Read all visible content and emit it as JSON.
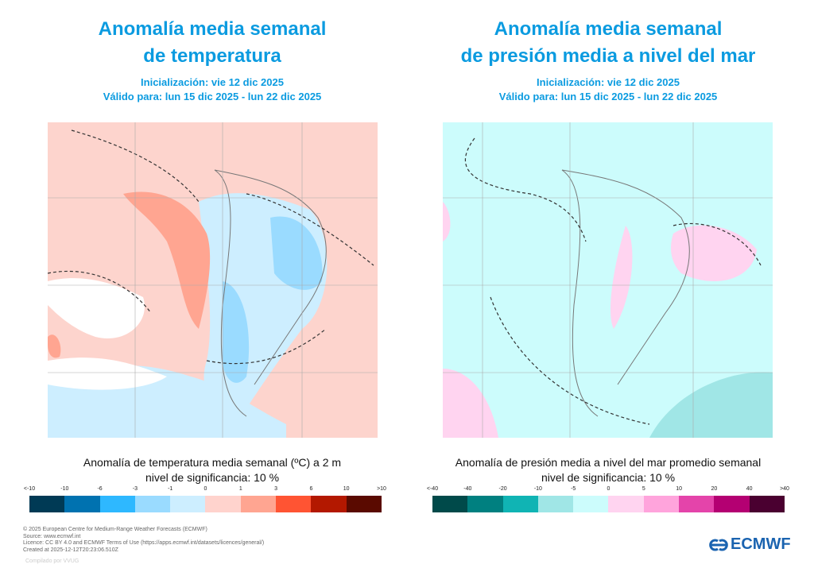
{
  "chart_data": [
    {
      "type": "heatmap",
      "title": "Anomalía media semanal de temperatura",
      "title_lines": [
        "Anomalía media semanal",
        "de temperatura"
      ],
      "init": "Inicialización: vie 12 dic 2025",
      "valid": "Válido para: lun 15 dic 2025 - lun 22 dic 2025",
      "colorbar_label": "Anomalía de temperatura media semanal (ºC) a 2 m",
      "significance": "nivel de significancia: 10 %",
      "tick_labels": [
        "<-10",
        "-10",
        "-6",
        "-3",
        "-1",
        "0",
        "1",
        "3",
        "6",
        "10",
        ">10"
      ],
      "colors": [
        "#003a55",
        "#0072b0",
        "#2eb8ff",
        "#9adbff",
        "#cdeeff",
        "#ffd3cd",
        "#ffa591",
        "#ff5433",
        "#b31800",
        "#5a0a00"
      ]
    },
    {
      "type": "heatmap",
      "title": "Anomalía media semanal de presión media a nivel del mar",
      "title_lines": [
        "Anomalía media semanal",
        "de presión media a nivel del mar"
      ],
      "init": "Inicialización: vie 12 dic 2025",
      "valid": "Válido para: lun 15 dic 2025 - lun 22 dic 2025",
      "colorbar_label": "Anomalía de presión media a nivel del mar promedio semanal",
      "significance": "nivel de significancia: 10 %",
      "tick_labels": [
        "<-40",
        "-40",
        "-20",
        "-10",
        "-5",
        "0",
        "5",
        "10",
        "20",
        "40",
        ">40"
      ],
      "colors": [
        "#004a4a",
        "#008080",
        "#10b4b4",
        "#a0e6e6",
        "#ccfcfc",
        "#ffd4f0",
        "#ffa4dc",
        "#e444aa",
        "#b40072",
        "#4a0030"
      ]
    }
  ],
  "footer": {
    "lines": [
      "© 2025 European Centre for Medium-Range Weather Forecasts (ECMWF)",
      "Source: www.ecmwf.int",
      "Licence: CC BY 4.0 and ECMWF Terms of Use (https://apps.ecmwf.int/datasets/licences/general/)",
      "Created at 2025-12-12T20:23:06.510Z"
    ],
    "compiled": "Compilado por VVUG",
    "logo": "ECMWF"
  }
}
